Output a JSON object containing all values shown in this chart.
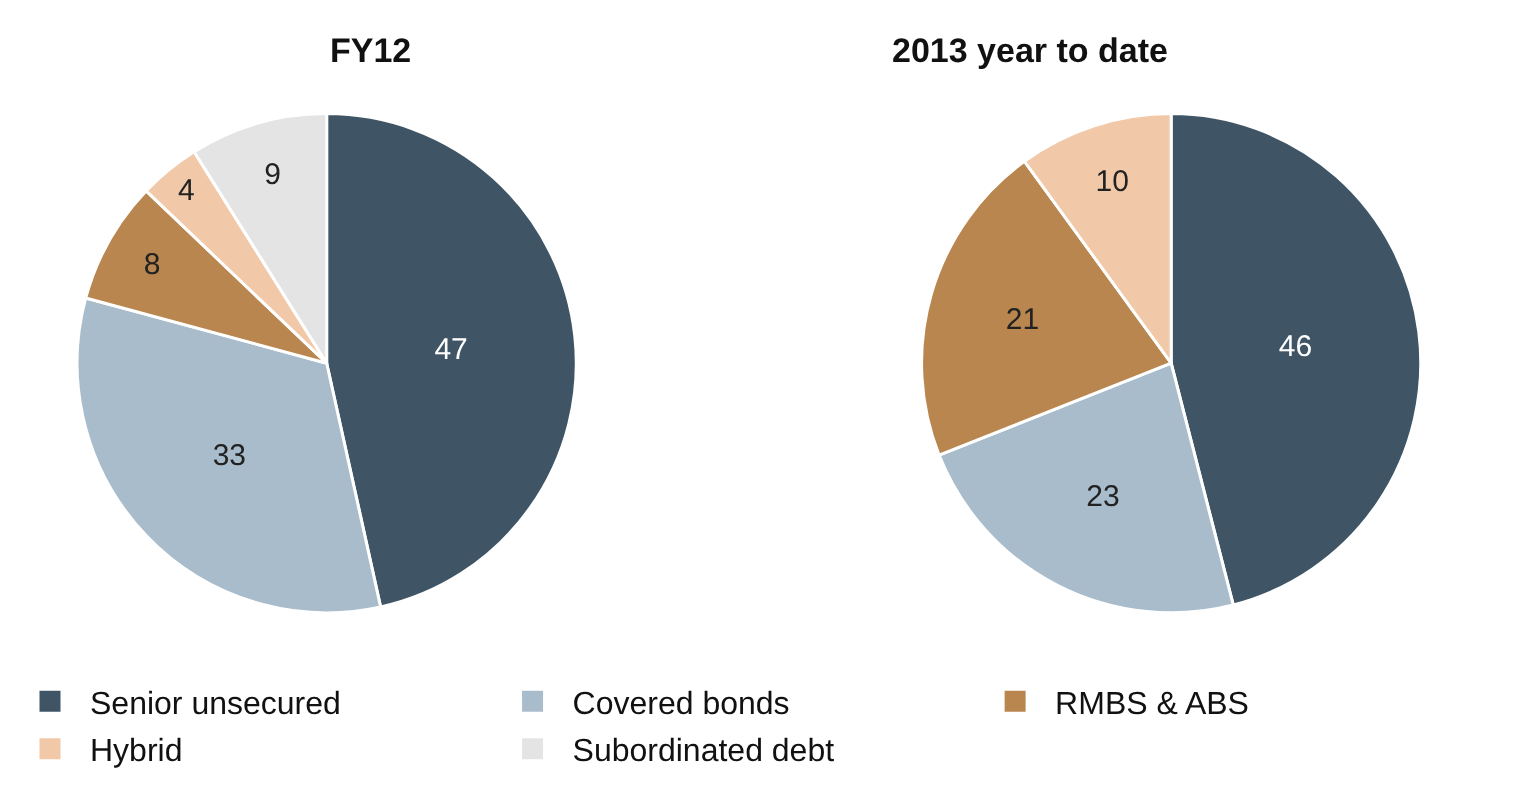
{
  "chart_data": [
    {
      "type": "pie",
      "title": "FY12",
      "categories": [
        "Senior unsecured",
        "Covered bonds",
        "RMBS & ABS",
        "Hybrid",
        "Subordinated debt"
      ],
      "values": [
        47,
        33,
        8,
        4,
        9
      ],
      "colors": [
        "#3f5566",
        "#a9bccb",
        "#b8864e",
        "#f2c9a8",
        "#e4e4e4"
      ],
      "data_labels": true,
      "legend": "bottom"
    },
    {
      "type": "pie",
      "title": "2013 year to date",
      "categories": [
        null,
        null,
        null,
        null
      ],
      "values": [
        46,
        23,
        21,
        10
      ],
      "colors": [
        "#3f5566",
        "#a9bccb",
        "#b8864e",
        "#f2c9a8"
      ],
      "data_labels": true
    }
  ]
}
